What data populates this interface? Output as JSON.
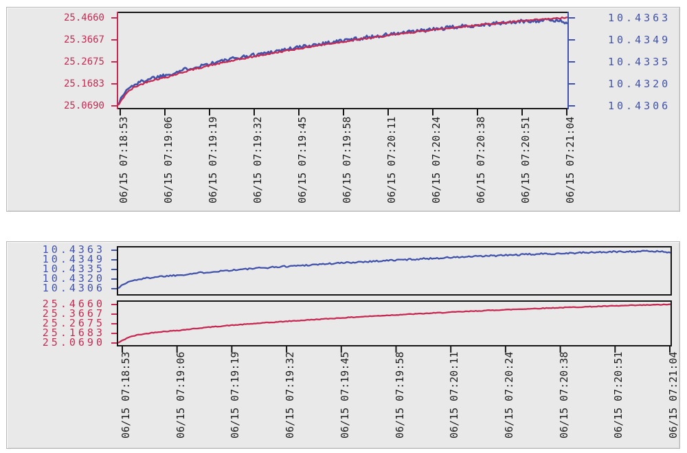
{
  "colors": {
    "red": "#c62a52",
    "blue": "#4152ab",
    "frame": "#151515",
    "panel_bg": "#e9e9e9",
    "x_label_color": "#1c1c1c"
  },
  "chart_data": [
    {
      "id": "overlay-dual-axis-chart",
      "type": "line",
      "title": "",
      "grid": false,
      "legend": false,
      "x_axis": {
        "kind": "time",
        "span_seconds": 131,
        "tick_labels": [
          "06/15 07:18:53",
          "06/15 07:19:06",
          "06/15 07:19:19",
          "06/15 07:19:32",
          "06/15 07:19:45",
          "06/15 07:19:58",
          "06/15 07:20:11",
          "06/15 07:20:24",
          "06/15 07:20:38",
          "06/15 07:20:51",
          "06/15 07:21:04"
        ]
      },
      "left_axis": {
        "color": "#c62a52",
        "ylim": [
          25.069,
          25.466
        ],
        "ticks": [
          25.466,
          25.3667,
          25.2675,
          25.1683,
          25.069
        ],
        "tick_labels": [
          "25.4660",
          "25.3667",
          "25.2675",
          "25.1683",
          "25.0690"
        ]
      },
      "right_axis": {
        "color": "#4152ab",
        "ylim": [
          10.4306,
          10.4363
        ],
        "ticks": [
          10.4363,
          10.4349,
          10.4335,
          10.432,
          10.4306
        ],
        "tick_labels": [
          "10.4363",
          "10.4349",
          "10.4335",
          "10.4320",
          "10.4306"
        ]
      },
      "series": [
        {
          "name": "blue-series",
          "axis": "right",
          "color": "#4152ab",
          "start_value": 10.4307,
          "end_value": 10.4362,
          "noise_amplitude": 0.00012,
          "seed": 1337,
          "points": 330,
          "profile_points": [
            [
              0,
              0.01
            ],
            [
              0.018,
              0.165
            ],
            [
              0.035,
              0.23
            ],
            [
              0.07,
              0.305
            ],
            [
              0.11,
              0.35
            ],
            [
              0.155,
              0.42
            ],
            [
              0.195,
              0.47
            ],
            [
              0.25,
              0.53
            ],
            [
              0.3,
              0.58
            ],
            [
              0.36,
              0.635
            ],
            [
              0.44,
              0.705
            ],
            [
              0.52,
              0.765
            ],
            [
              0.6,
              0.82
            ],
            [
              0.68,
              0.87
            ],
            [
              0.76,
              0.915
            ],
            [
              0.84,
              0.95
            ],
            [
              0.92,
              0.985
            ],
            [
              0.97,
              0.99
            ],
            [
              1,
              0.97
            ]
          ]
        },
        {
          "name": "red-series",
          "axis": "left",
          "color": "#c62a52",
          "start_value": 25.071,
          "end_value": 25.467,
          "noise_amplitude": 0.0035,
          "seed": 42,
          "points": 330,
          "profile_points": [
            [
              0,
              0
            ],
            [
              0.018,
              0.14
            ],
            [
              0.035,
              0.205
            ],
            [
              0.07,
              0.28
            ],
            [
              0.11,
              0.325
            ],
            [
              0.155,
              0.395
            ],
            [
              0.195,
              0.445
            ],
            [
              0.25,
              0.505
            ],
            [
              0.3,
              0.555
            ],
            [
              0.36,
              0.61
            ],
            [
              0.44,
              0.68
            ],
            [
              0.52,
              0.74
            ],
            [
              0.6,
              0.795
            ],
            [
              0.68,
              0.85
            ],
            [
              0.76,
              0.895
            ],
            [
              0.84,
              0.935
            ],
            [
              0.92,
              0.97
            ],
            [
              1,
              1
            ]
          ]
        }
      ]
    },
    {
      "id": "stacked-strip-charts",
      "type": "line",
      "title": "",
      "grid": false,
      "legend": false,
      "x_axis": {
        "kind": "time",
        "span_seconds": 131,
        "tick_labels": [
          "06/15 07:18:53",
          "06/15 07:19:06",
          "06/15 07:19:19",
          "06/15 07:19:32",
          "06/15 07:19:45",
          "06/15 07:19:58",
          "06/15 07:20:11",
          "06/15 07:20:24",
          "06/15 07:20:38",
          "06/15 07:20:51",
          "06/15 07:21:04"
        ]
      },
      "strips": [
        {
          "series": "blue-series",
          "axis": {
            "color": "#4152ab",
            "ylim": [
              10.4306,
              10.4363
            ],
            "ticks": [
              10.4363,
              10.4349,
              10.4335,
              10.432,
              10.4306
            ],
            "tick_labels": [
              "10.4363",
              "10.4349",
              "10.4335",
              "10.4320",
              "10.4306"
            ]
          }
        },
        {
          "series": "red-series",
          "axis": {
            "color": "#c62a52",
            "ylim": [
              25.069,
              25.466
            ],
            "ticks": [
              25.466,
              25.3667,
              25.2675,
              25.1683,
              25.069
            ],
            "tick_labels": [
              "25.4660",
              "25.3667",
              "25.2675",
              "25.1683",
              "25.0690"
            ]
          }
        }
      ]
    }
  ]
}
